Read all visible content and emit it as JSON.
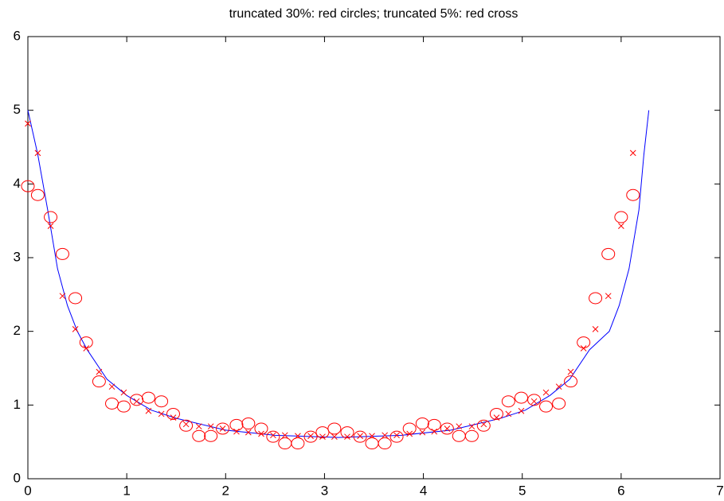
{
  "chart_data": {
    "type": "line",
    "title": "truncated 30%: red circles; truncated 5%: red cross",
    "xlim": [
      0,
      7
    ],
    "ylim": [
      0,
      6
    ],
    "xticks": [
      0,
      1,
      2,
      3,
      4,
      5,
      6,
      7
    ],
    "yticks": [
      0,
      1,
      2,
      3,
      4,
      5,
      6
    ],
    "grid": false,
    "series": [
      {
        "style": "line",
        "color": "#0000ff",
        "x": [
          0,
          0.05,
          0.1,
          0.2,
          0.3,
          0.4,
          0.5,
          0.6,
          0.8,
          1,
          1.25,
          1.5,
          2,
          2.5,
          3.14,
          3.78,
          4.28,
          4.78,
          5.03,
          5.28,
          5.48,
          5.68,
          5.88,
          5.98,
          6.08,
          6.18,
          6.23,
          6.28
        ],
        "values": [
          5,
          4.7,
          4.4,
          3.65,
          2.85,
          2.35,
          2.0,
          1.75,
          1.35,
          1.13,
          0.93,
          0.82,
          0.66,
          0.59,
          0.56,
          0.59,
          0.66,
          0.82,
          0.93,
          1.13,
          1.35,
          1.75,
          2.0,
          2.35,
          2.85,
          3.65,
          4.4,
          5
        ]
      },
      {
        "style": "circle",
        "color": "#ff0000",
        "x": [
          0,
          0.1,
          0.23,
          0.35,
          0.48,
          0.59,
          0.72,
          0.85,
          0.97,
          1.1,
          1.22,
          1.35,
          1.47,
          1.6,
          1.73,
          1.85,
          1.97,
          2.11,
          2.23,
          2.36,
          2.48,
          2.6,
          2.73,
          2.86,
          2.98,
          3.1,
          3.23,
          3.36,
          3.48,
          3.61,
          3.73,
          3.86,
          3.99,
          4.11,
          4.24,
          4.36,
          4.49,
          4.61,
          4.74,
          4.86,
          4.99,
          5.12,
          5.24,
          5.37,
          5.49,
          5.62,
          5.74,
          5.87,
          6.0,
          6.12
        ],
        "values": [
          3.97,
          3.85,
          3.55,
          3.05,
          2.45,
          1.85,
          1.32,
          1.02,
          0.98,
          1.07,
          1.1,
          1.05,
          0.88,
          0.72,
          0.58,
          0.58,
          0.68,
          0.73,
          0.75,
          0.68,
          0.57,
          0.48,
          0.48,
          0.57,
          0.63,
          0.68,
          0.63,
          0.57,
          0.48,
          0.48,
          0.57,
          0.68,
          0.75,
          0.73,
          0.68,
          0.58,
          0.58,
          0.72,
          0.88,
          1.05,
          1.1,
          1.07,
          0.98,
          1.02,
          1.32,
          1.85,
          2.45,
          3.05,
          3.55,
          3.85
        ]
      },
      {
        "style": "cross",
        "color": "#ff0000",
        "x": [
          0,
          0.1,
          0.23,
          0.35,
          0.48,
          0.59,
          0.72,
          0.85,
          0.97,
          1.1,
          1.22,
          1.35,
          1.47,
          1.6,
          1.73,
          1.85,
          1.97,
          2.11,
          2.23,
          2.36,
          2.48,
          2.6,
          2.73,
          2.86,
          2.98,
          3.1,
          3.23,
          3.36,
          3.48,
          3.61,
          3.73,
          3.86,
          3.99,
          4.11,
          4.24,
          4.36,
          4.49,
          4.61,
          4.74,
          4.86,
          4.99,
          5.12,
          5.24,
          5.37,
          5.49,
          5.62,
          5.74,
          5.87,
          6.0,
          6.12
        ],
        "values": [
          4.82,
          4.42,
          3.43,
          2.48,
          2.03,
          1.77,
          1.45,
          1.25,
          1.17,
          1.05,
          0.92,
          0.88,
          0.83,
          0.74,
          0.71,
          0.71,
          0.68,
          0.64,
          0.63,
          0.61,
          0.59,
          0.59,
          0.58,
          0.58,
          0.57,
          0.57,
          0.57,
          0.58,
          0.58,
          0.59,
          0.59,
          0.61,
          0.63,
          0.64,
          0.68,
          0.71,
          0.71,
          0.74,
          0.83,
          0.88,
          0.92,
          1.05,
          1.17,
          1.25,
          1.45,
          1.77,
          2.03,
          2.48,
          3.43,
          4.42
        ]
      }
    ]
  }
}
